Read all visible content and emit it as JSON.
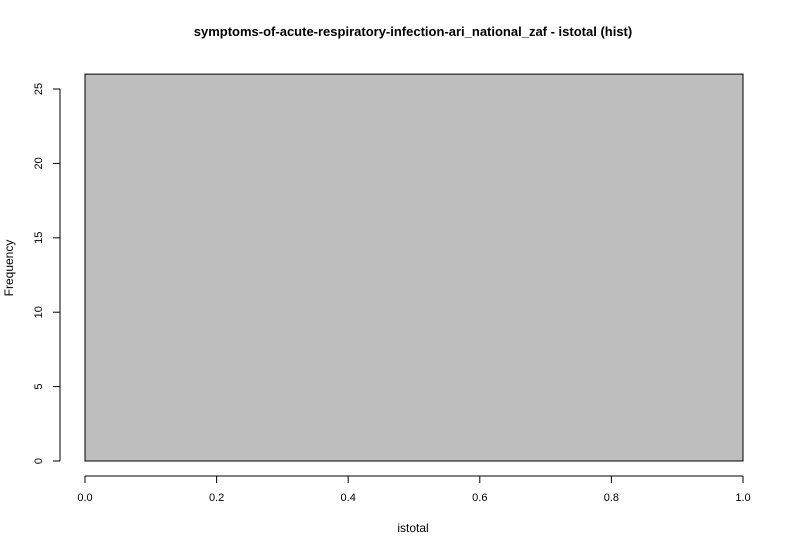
{
  "chart_data": {
    "type": "bar",
    "title": "symptoms-of-acute-respiratory-infection-ari_national_zaf - istotal (hist)",
    "xlabel": "istotal",
    "ylabel": "Frequency",
    "bins": [
      {
        "x0": 0.0,
        "x1": 1.0,
        "count": 26
      }
    ],
    "xlim": [
      0.0,
      1.0
    ],
    "ylim": [
      0,
      26
    ],
    "x_ticks": [
      0.0,
      0.2,
      0.4,
      0.6,
      0.8,
      1.0
    ],
    "x_tick_labels": [
      "0.0",
      "0.2",
      "0.4",
      "0.6",
      "0.8",
      "1.0"
    ],
    "y_ticks": [
      0,
      5,
      10,
      15,
      20,
      25
    ],
    "y_tick_labels": [
      "0",
      "5",
      "10",
      "15",
      "20",
      "25"
    ],
    "bar_fill": "#bebebe",
    "bar_stroke": "#000000",
    "grid": false,
    "legend": "none"
  }
}
